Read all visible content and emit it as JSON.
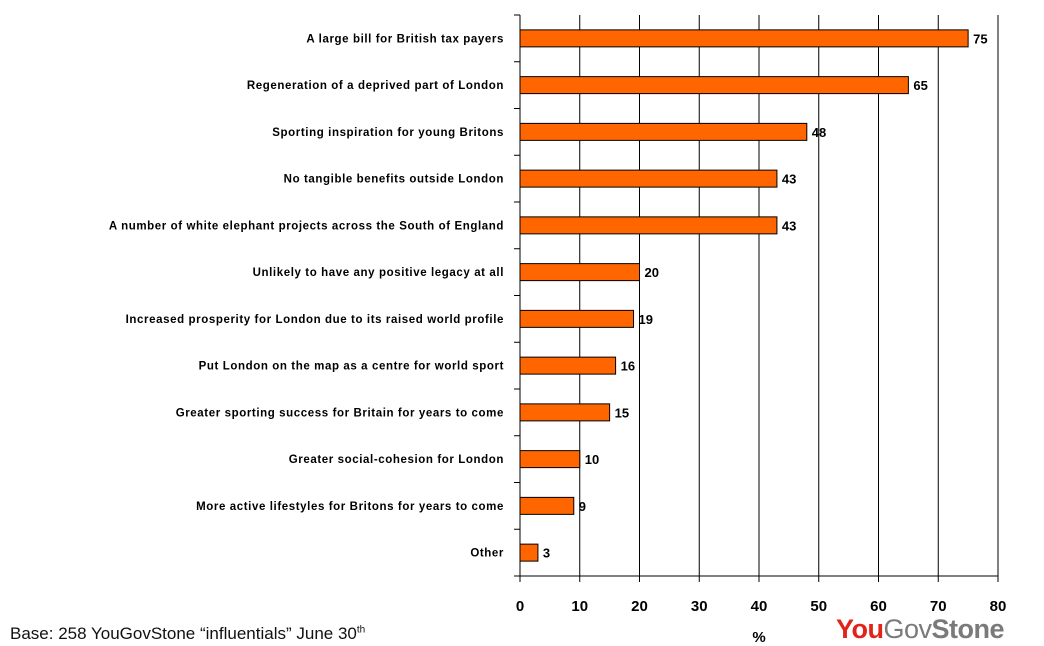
{
  "chart_data": {
    "type": "bar",
    "orientation": "horizontal",
    "categories": [
      "A large bill for British tax payers",
      "Regeneration of a deprived part of London",
      "Sporting inspiration for young Britons",
      "No tangible benefits outside London",
      "A number of white elephant projects across the South of England",
      "Unlikely to have any positive legacy at all",
      "Increased prosperity for London due to its raised world profile",
      "Put London on the map as a centre for world sport",
      "Greater sporting success for Britain for years to come",
      "Greater social-cohesion for London",
      "More active lifestyles for Britons for years to come",
      "Other"
    ],
    "values": [
      75,
      65,
      48,
      43,
      43,
      20,
      19,
      16,
      15,
      10,
      9,
      3
    ],
    "xlabel": "%",
    "xlim": [
      0,
      80
    ],
    "xticks": [
      0,
      10,
      20,
      30,
      40,
      50,
      60,
      70,
      80
    ],
    "bar_color": "#ff6600",
    "grid": true,
    "data_labels": true
  },
  "footer": {
    "base_text": "Base: 258 YouGovStone “influentials” June 30",
    "base_sup": "th"
  },
  "logo": {
    "part1": "You",
    "part2": "Gov",
    "part3": "Stone",
    "color_primary": "#e2231a",
    "color_secondary": "#7a7a7a"
  }
}
